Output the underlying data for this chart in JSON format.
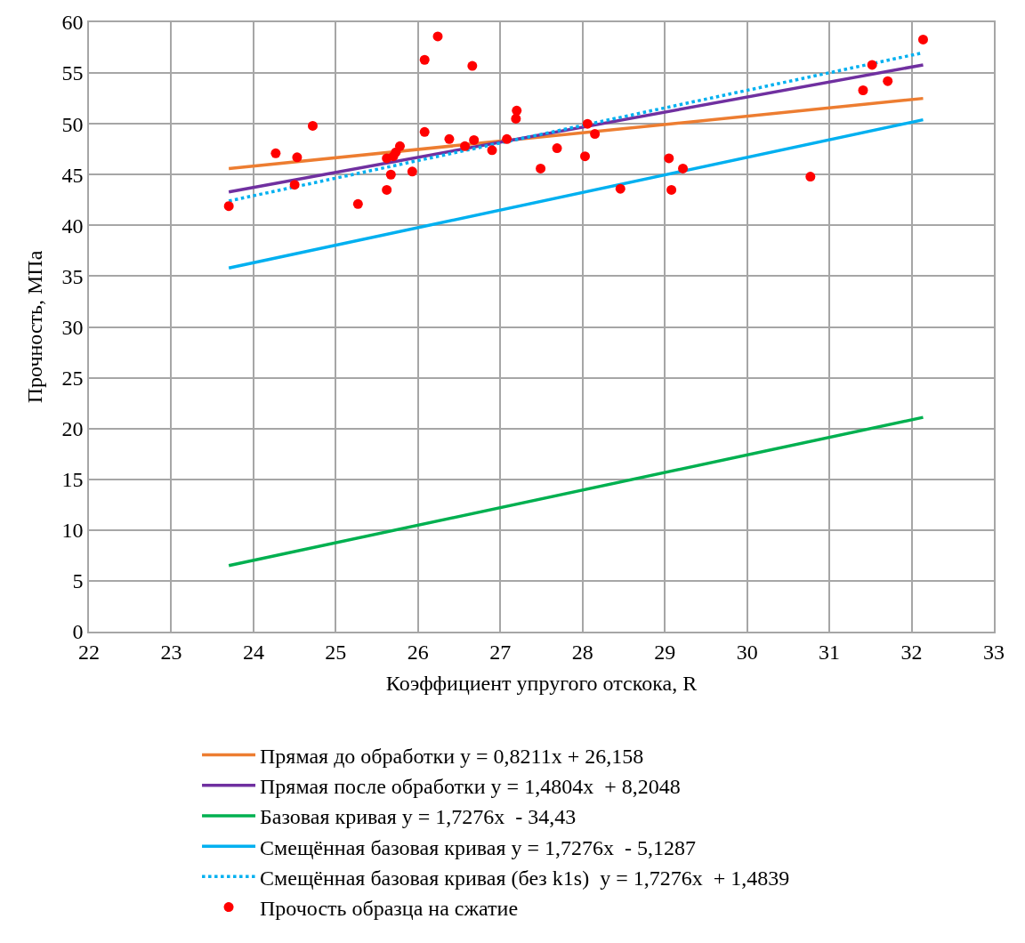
{
  "chart_data": {
    "type": "scatter",
    "xlabel": "Коэффициент упругого отскока, R",
    "ylabel": "Прочность, МПа",
    "xlim": [
      22,
      33
    ],
    "xticks": [
      22,
      23,
      24,
      25,
      26,
      27,
      28,
      29,
      30,
      31,
      32,
      33
    ],
    "ylim": [
      0,
      60
    ],
    "yticks": [
      0,
      5,
      10,
      15,
      20,
      25,
      30,
      35,
      40,
      45,
      50,
      55,
      60
    ],
    "grid": true,
    "legend": "bottom",
    "series": [
      {
        "name": "Прочость образца на сжатие",
        "marker": "circle",
        "color": "#ff0000",
        "x": [
          23.7,
          24.27,
          24.5,
          24.53,
          24.72,
          25.27,
          25.62,
          25.62,
          25.67,
          25.7,
          25.73,
          25.78,
          25.93,
          26.08,
          26.08,
          26.24,
          26.38,
          26.57,
          26.66,
          26.68,
          26.9,
          27.08,
          27.19,
          27.2,
          27.49,
          27.69,
          28.03,
          28.06,
          28.15,
          28.46,
          29.05,
          29.08,
          29.22,
          30.77,
          31.41,
          31.52,
          31.71,
          32.14
        ],
        "values": [
          41.9,
          47.1,
          44.0,
          46.7,
          49.8,
          42.1,
          43.5,
          46.6,
          45.0,
          46.8,
          47.2,
          47.8,
          45.3,
          49.2,
          56.3,
          58.6,
          48.5,
          47.8,
          55.7,
          48.4,
          47.4,
          48.5,
          50.5,
          51.3,
          45.6,
          47.6,
          46.8,
          50.0,
          49.0,
          43.6,
          46.6,
          43.5,
          45.6,
          44.8,
          53.3,
          55.8,
          54.2,
          58.3
        ]
      },
      {
        "name": "Прямая до обработки y = 0,8211x + 26,158",
        "type": "line",
        "line_style": "solid",
        "color": "#ed7d31",
        "x": [
          23.7,
          32.14
        ],
        "values": [
          45.6,
          52.5
        ]
      },
      {
        "name": "Прямая после обработки y = 1,4804x  + 8,2048",
        "type": "line",
        "line_style": "solid",
        "color": "#7030a0",
        "x": [
          23.7,
          32.14
        ],
        "values": [
          43.3,
          55.8
        ]
      },
      {
        "name": "Базовая кривая y = 1,7276x  - 34,43",
        "type": "line",
        "line_style": "solid",
        "color": "#00b050",
        "x": [
          23.7,
          32.14
        ],
        "values": [
          6.5,
          21.1
        ]
      },
      {
        "name": "Смещённая базовая кривая y = 1,7276x  - 5,1287",
        "type": "line",
        "line_style": "solid",
        "color": "#00b0f0",
        "x": [
          23.7,
          32.14
        ],
        "values": [
          35.8,
          50.4
        ]
      },
      {
        "name": "Смещённая базовая кривая (без k1s)  y = 1,7276x  + 1,4839",
        "type": "line",
        "line_style": "dotted",
        "color": "#00b0f0",
        "x": [
          23.7,
          32.14
        ],
        "values": [
          42.4,
          57.0
        ]
      }
    ]
  }
}
